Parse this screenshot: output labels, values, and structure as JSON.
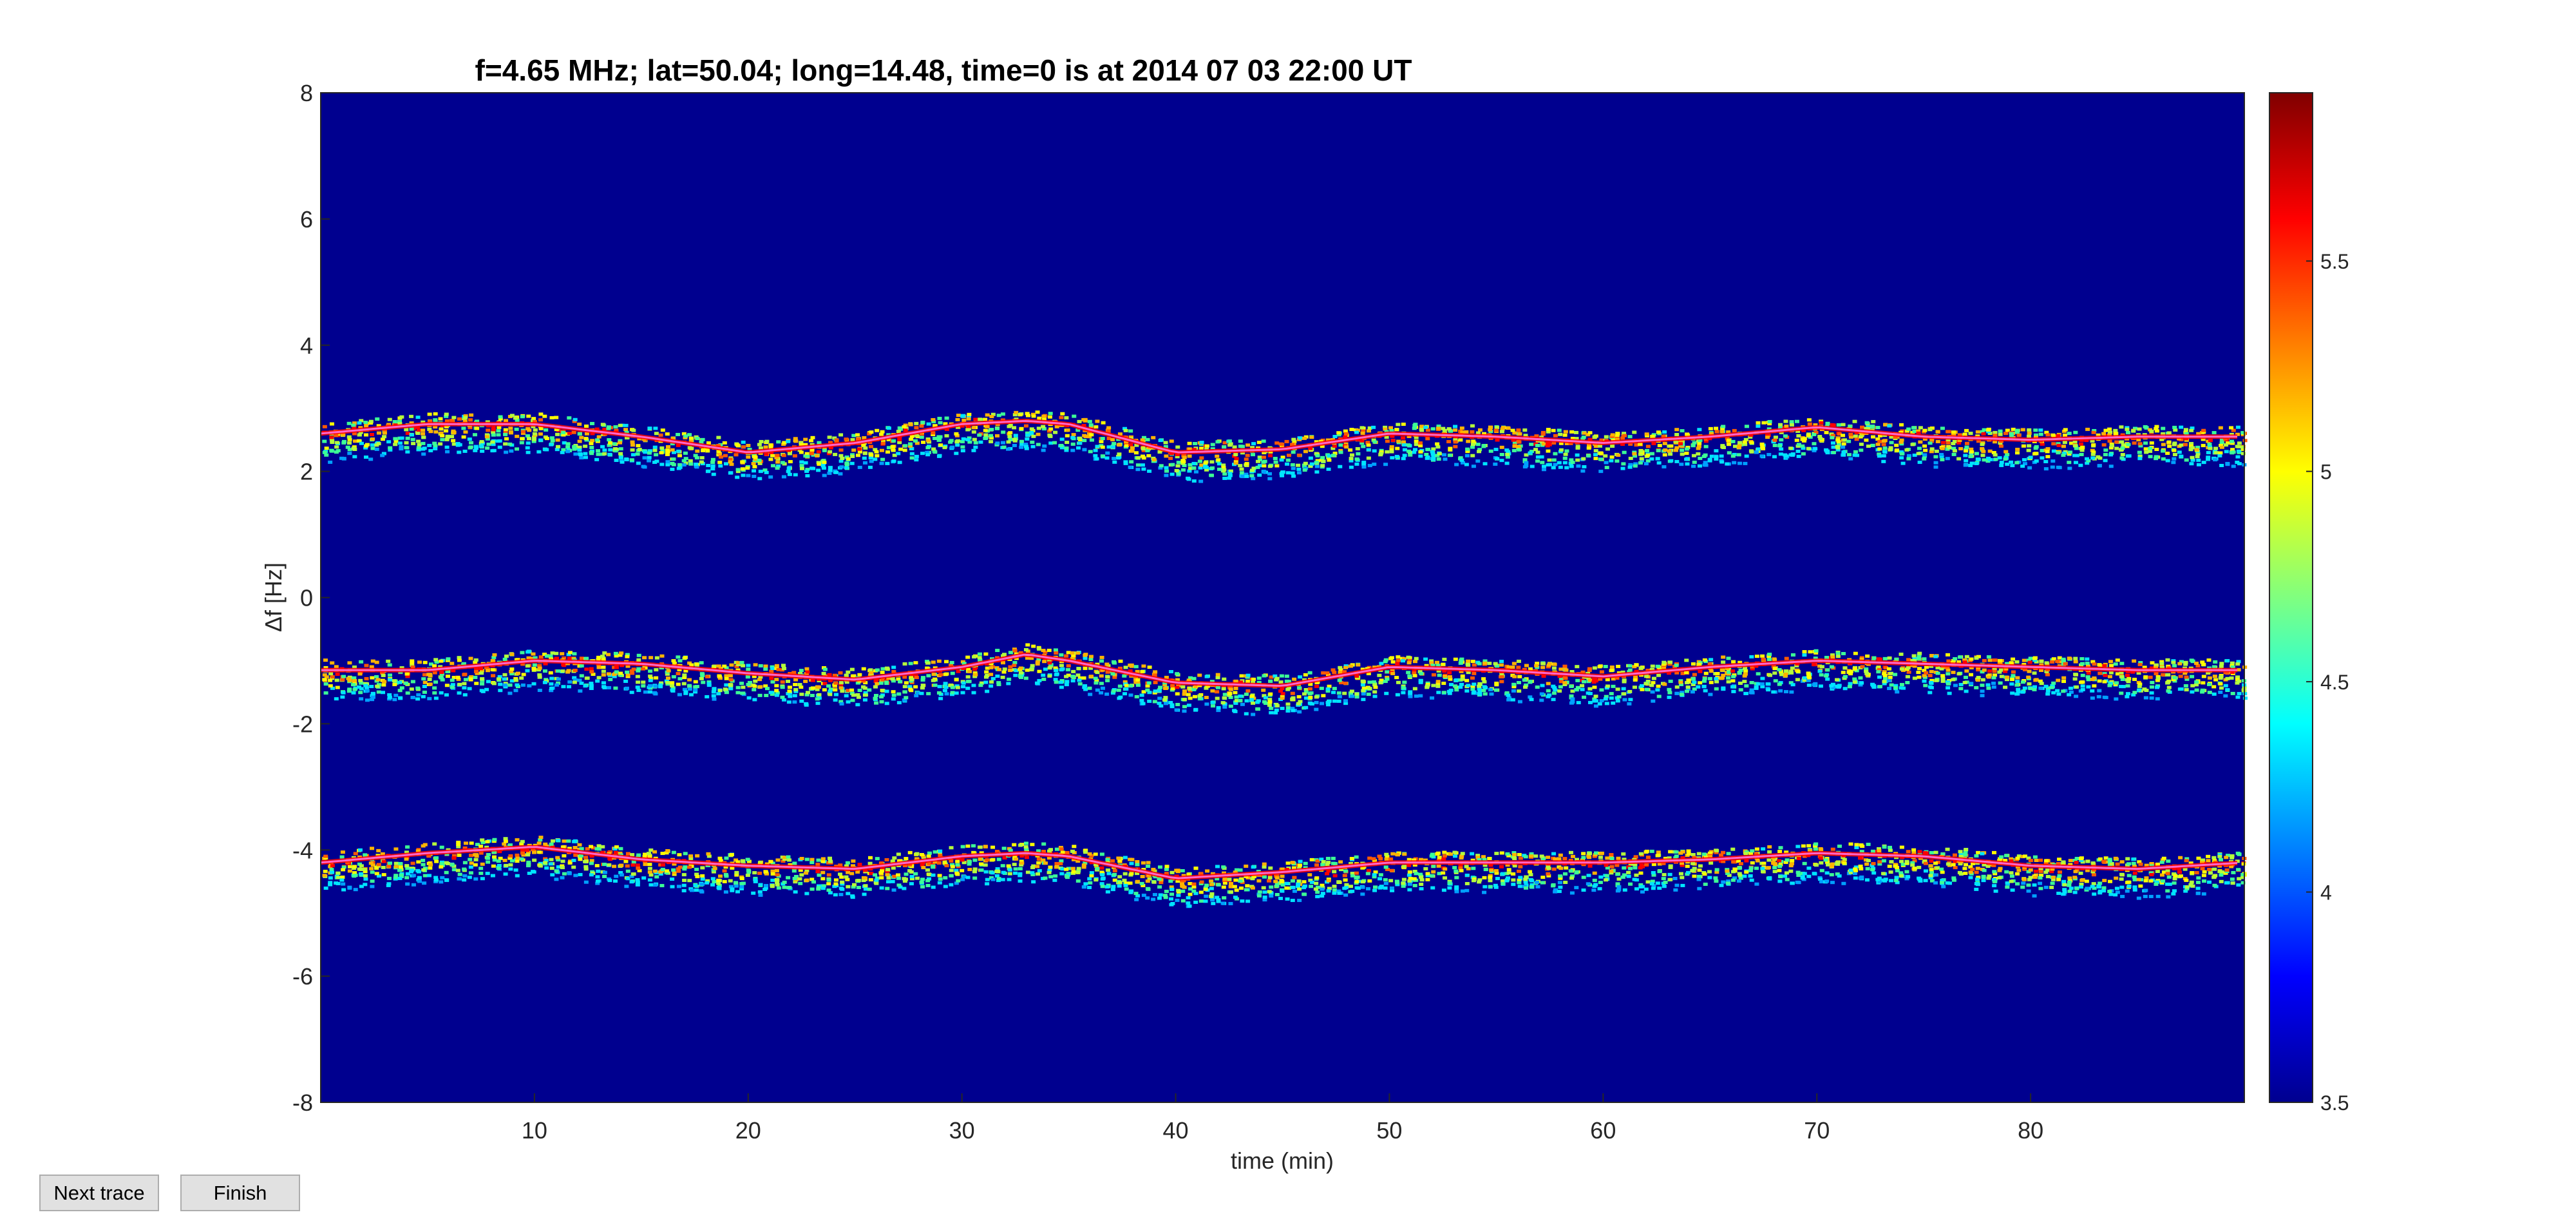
{
  "chart_data": {
    "type": "heatmap",
    "title": "f=4.65 MHz;  lat=50.04; long=14.48, time=0 is at 2014 07 03 22:00 UT",
    "xlabel": "time (min)",
    "ylabel": "Δf [Hz]",
    "xlim": [
      0,
      90
    ],
    "ylim": [
      -8,
      8
    ],
    "x_ticks": [
      10,
      20,
      30,
      40,
      50,
      60,
      70,
      80
    ],
    "x_tick_labels": [
      "10",
      "20",
      "30",
      "40",
      "50",
      "60",
      "70",
      "80"
    ],
    "y_ticks": [
      8,
      6,
      4,
      2,
      0,
      -2,
      -4,
      -6,
      -8
    ],
    "y_tick_labels": [
      "8",
      "6",
      "4",
      "2",
      "0",
      "-2",
      "-4",
      "-6",
      "-8"
    ],
    "colormap": "jet",
    "colorbar": {
      "range": [
        3.5,
        5.9
      ],
      "ticks": [
        3.5,
        4,
        4.5,
        5,
        5.5
      ],
      "tick_labels": [
        "3.5",
        "4",
        "4.5",
        "5",
        "5.5"
      ],
      "location": "right"
    },
    "background_color": "#00008f",
    "trace_color": "#ff66cc",
    "grid": false,
    "series": [
      {
        "x": [
          0,
          5,
          10,
          15,
          20,
          25,
          30,
          33,
          35,
          40,
          45,
          50,
          55,
          60,
          65,
          70,
          75,
          80,
          85,
          90
        ],
        "y": [
          2.6,
          2.75,
          2.75,
          2.55,
          2.3,
          2.45,
          2.75,
          2.8,
          2.75,
          2.3,
          2.35,
          2.6,
          2.55,
          2.45,
          2.55,
          2.7,
          2.55,
          2.5,
          2.55,
          2.55
        ]
      },
      {
        "x": [
          0,
          5,
          10,
          15,
          20,
          25,
          30,
          33,
          35,
          40,
          45,
          50,
          55,
          60,
          65,
          70,
          75,
          80,
          85,
          90
        ],
        "y": [
          -1.15,
          -1.15,
          -1.0,
          -1.05,
          -1.2,
          -1.3,
          -1.1,
          -0.9,
          -1.0,
          -1.35,
          -1.4,
          -1.1,
          -1.15,
          -1.25,
          -1.1,
          -1.0,
          -1.05,
          -1.1,
          -1.15,
          -1.15
        ]
      },
      {
        "x": [
          0,
          5,
          10,
          15,
          20,
          25,
          30,
          33,
          35,
          40,
          45,
          50,
          55,
          60,
          65,
          70,
          75,
          80,
          85,
          90
        ],
        "y": [
          -4.2,
          -4.05,
          -3.95,
          -4.15,
          -4.25,
          -4.3,
          -4.1,
          -4.05,
          -4.1,
          -4.45,
          -4.35,
          -4.2,
          -4.2,
          -4.2,
          -4.15,
          -4.05,
          -4.1,
          -4.25,
          -4.3,
          -4.2
        ]
      }
    ]
  },
  "buttons": {
    "next_trace": "Next trace",
    "finish": "Finish"
  }
}
